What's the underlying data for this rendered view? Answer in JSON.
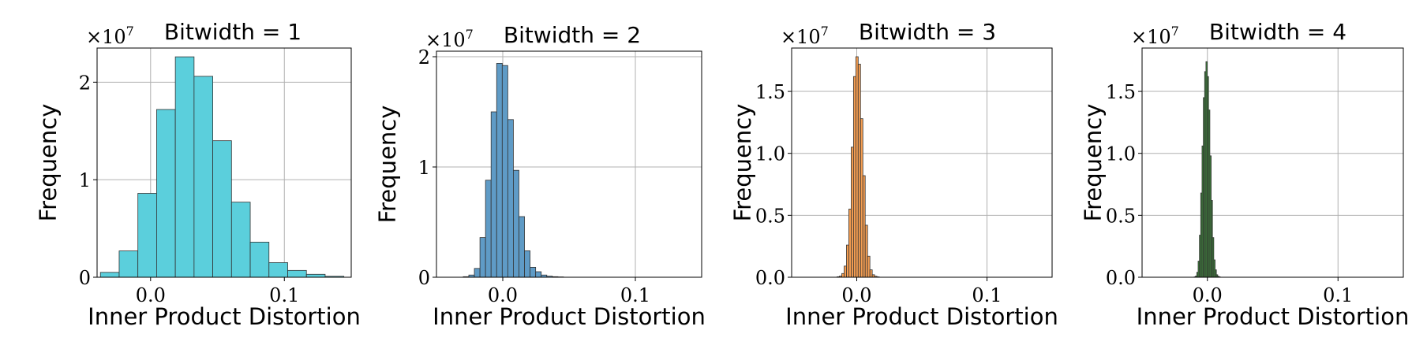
{
  "chart_data": [
    {
      "type": "bar",
      "title": "Bitwidth = 1",
      "xlabel": "Inner Product Distortion",
      "ylabel": "Frequency",
      "multiplier_base": "×10",
      "multiplier_exp": "7",
      "color": "#5bcfdc",
      "xlim": [
        -0.04,
        0.15
      ],
      "ylim": [
        0,
        2.35
      ],
      "xticks": [
        0.0,
        0.1
      ],
      "xtick_labels": [
        "0.0",
        "0.1"
      ],
      "yticks": [
        0,
        1,
        2
      ],
      "ytick_labels": [
        "0",
        "1",
        "2"
      ],
      "grid": true,
      "bin_edges": [
        -0.0375,
        -0.0235,
        -0.0095,
        0.0045,
        0.0185,
        0.0325,
        0.0465,
        0.0605,
        0.0745,
        0.0885,
        0.1025,
        0.1165,
        0.1305,
        0.1445
      ],
      "values": [
        0.05,
        0.27,
        0.86,
        1.72,
        2.26,
        2.06,
        1.4,
        0.77,
        0.36,
        0.15,
        0.07,
        0.03,
        0.01
      ]
    },
    {
      "type": "bar",
      "title": "Bitwidth = 2",
      "xlabel": "Inner Product Distortion",
      "ylabel": "Frequency",
      "multiplier_base": "×10",
      "multiplier_exp": "7",
      "color": "#5f9bc6",
      "xlim": [
        -0.05,
        0.15
      ],
      "ylim": [
        0,
        2.05
      ],
      "xticks": [
        0.0,
        0.1
      ],
      "xtick_labels": [
        "0.0",
        "0.1"
      ],
      "yticks": [
        0,
        1,
        2
      ],
      "ytick_labels": [
        "0",
        "1",
        "2"
      ],
      "grid": true,
      "bin_edges": [
        -0.0298,
        -0.0256,
        -0.0214,
        -0.0172,
        -0.013,
        -0.0088,
        -0.0046,
        -0.0004,
        0.0038,
        0.008,
        0.0122,
        0.0164,
        0.0206,
        0.0248,
        0.029,
        0.0332,
        0.0374,
        0.0416,
        0.0458
      ],
      "values": [
        0.005,
        0.02,
        0.08,
        0.36,
        0.88,
        1.5,
        1.94,
        1.92,
        1.43,
        0.97,
        0.55,
        0.24,
        0.09,
        0.05,
        0.02,
        0.01,
        0.005,
        0.003
      ]
    },
    {
      "type": "bar",
      "title": "Bitwidth = 3",
      "xlabel": "Inner Product Distortion",
      "ylabel": "Frequency",
      "multiplier_base": "×10",
      "multiplier_exp": "7",
      "color": "#f59e52",
      "xlim": [
        -0.05,
        0.15
      ],
      "ylim": [
        0,
        1.85
      ],
      "xticks": [
        0.0,
        0.1
      ],
      "xtick_labels": [
        "0.0",
        "0.1"
      ],
      "yticks": [
        0.0,
        0.5,
        1.0,
        1.5
      ],
      "ytick_labels": [
        "0.0",
        "0.5",
        "1.0",
        "1.5"
      ],
      "grid": true,
      "bin_edges": [
        -0.0151,
        -0.0133,
        -0.0115,
        -0.0097,
        -0.0079,
        -0.0061,
        -0.0043,
        -0.0025,
        -0.0007,
        0.0011,
        0.0029,
        0.0047,
        0.0065,
        0.0083,
        0.0101,
        0.0119,
        0.0137,
        0.0155,
        0.0173
      ],
      "values": [
        0.004,
        0.01,
        0.03,
        0.09,
        0.26,
        0.55,
        1.05,
        1.62,
        1.78,
        1.72,
        1.28,
        0.82,
        0.42,
        0.17,
        0.06,
        0.02,
        0.008,
        0.003
      ]
    },
    {
      "type": "bar",
      "title": "Bitwidth = 4",
      "xlabel": "Inner Product Distortion",
      "ylabel": "Frequency",
      "multiplier_base": "×10",
      "multiplier_exp": "7",
      "color": "#3f8a3c",
      "xlim": [
        -0.05,
        0.15
      ],
      "ylim": [
        0,
        1.85
      ],
      "xticks": [
        0.0,
        0.1
      ],
      "xtick_labels": [
        "0.0",
        "0.1"
      ],
      "yticks": [
        0.0,
        0.5,
        1.0,
        1.5
      ],
      "ytick_labels": [
        "0.0",
        "0.5",
        "1.0",
        "1.5"
      ],
      "grid": true,
      "bin_edges": [
        -0.0101,
        -0.0091,
        -0.0081,
        -0.0071,
        -0.0061,
        -0.0051,
        -0.0041,
        -0.0031,
        -0.0021,
        -0.0011,
        -0.0001,
        0.0009,
        0.0019,
        0.0029,
        0.0039,
        0.0049,
        0.0059,
        0.0069,
        0.0079,
        0.0089,
        0.0099
      ],
      "values": [
        0.003,
        0.01,
        0.04,
        0.13,
        0.34,
        0.68,
        1.06,
        1.45,
        1.66,
        1.74,
        1.62,
        1.35,
        0.98,
        0.62,
        0.32,
        0.14,
        0.06,
        0.02,
        0.008,
        0.003
      ]
    }
  ]
}
